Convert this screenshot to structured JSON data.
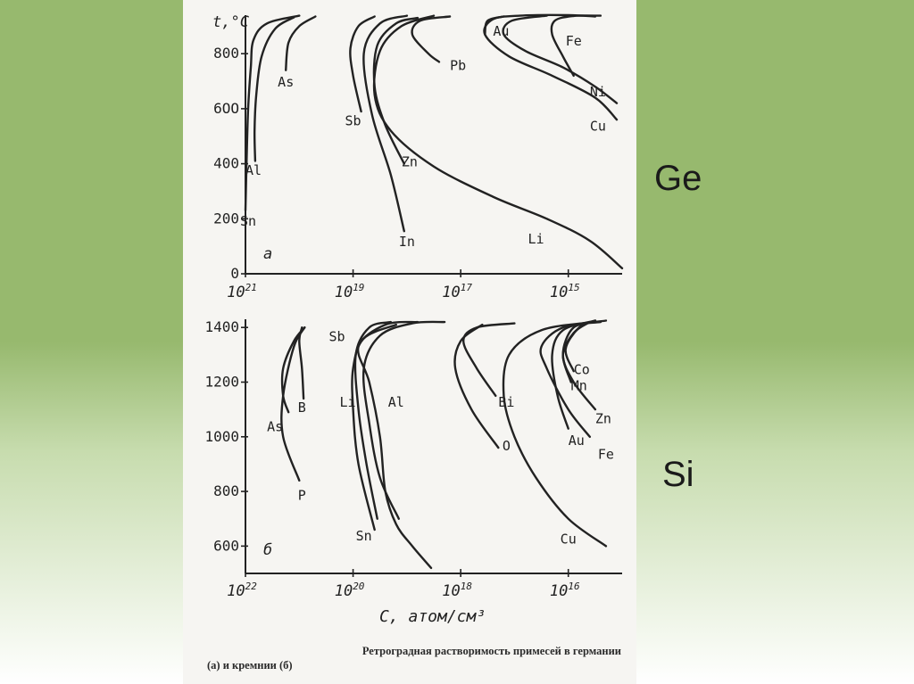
{
  "labels": {
    "ge": "Ge",
    "si": "Si"
  },
  "caption": {
    "line1": "Ретроградная растворимость примесей в германии",
    "line2": "(а) и кремнии (б)"
  },
  "colors": {
    "background_top": "#97b96e",
    "paper": "#f6f5f2",
    "ink": "#222222"
  },
  "chart_data": [
    {
      "type": "line",
      "panel_label": "а",
      "ylabel": "t,°C",
      "xlabel": "",
      "x_scale": "log, reversed (concentration, atom/cm³)",
      "xlim_exp": [
        21,
        14
      ],
      "ylim": [
        0,
        940
      ],
      "x_ticks": [
        "10^21",
        "10^19",
        "10^17",
        "10^15"
      ],
      "x_tick_exponents": [
        21,
        19,
        17,
        15
      ],
      "y_ticks": [
        0,
        200,
        400,
        600,
        800
      ],
      "y_tick_labels": [
        "0",
        "200",
        "400",
        "6OO",
        "800"
      ],
      "series": [
        {
          "name": "Sn",
          "label_at": {
            "exp": 20.95,
            "t": 175
          },
          "points": [
            [
              21.0,
              230
            ],
            [
              20.98,
              400
            ],
            [
              20.95,
              600
            ],
            [
              20.9,
              750
            ],
            [
              20.85,
              850
            ],
            [
              20.6,
              910
            ],
            [
              20.0,
              938
            ]
          ]
        },
        {
          "name": "Al",
          "label_at": {
            "exp": 20.85,
            "t": 360
          },
          "points": [
            [
              20.82,
              410
            ],
            [
              20.83,
              520
            ],
            [
              20.8,
              650
            ],
            [
              20.7,
              790
            ],
            [
              20.45,
              890
            ],
            [
              20.1,
              932
            ]
          ]
        },
        {
          "name": "As",
          "label_at": {
            "exp": 20.25,
            "t": 680
          },
          "points": [
            [
              20.25,
              740
            ],
            [
              20.2,
              840
            ],
            [
              20.0,
              900
            ],
            [
              19.7,
              935
            ]
          ]
        },
        {
          "name": "Sb",
          "label_at": {
            "exp": 19.0,
            "t": 540
          },
          "points": [
            [
              18.85,
              590
            ],
            [
              19.0,
              720
            ],
            [
              19.05,
              820
            ],
            [
              18.9,
              900
            ],
            [
              18.6,
              935
            ]
          ]
        },
        {
          "name": "In",
          "label_at": {
            "exp": 18.0,
            "t": 100
          },
          "points": [
            [
              18.05,
              155
            ],
            [
              18.3,
              360
            ],
            [
              18.65,
              580
            ],
            [
              18.8,
              800
            ],
            [
              18.5,
              910
            ],
            [
              18.0,
              938
            ]
          ]
        },
        {
          "name": "Zn",
          "label_at": {
            "exp": 17.95,
            "t": 390
          },
          "points": [
            [
              18.05,
              400
            ],
            [
              18.4,
              540
            ],
            [
              18.6,
              680
            ],
            [
              18.55,
              830
            ],
            [
              18.2,
              910
            ],
            [
              17.8,
              930
            ]
          ]
        },
        {
          "name": "Li",
          "label_at": {
            "exp": 15.6,
            "t": 110
          },
          "points": [
            [
              14.0,
              20
            ],
            [
              14.6,
              120
            ],
            [
              15.4,
              200
            ],
            [
              16.4,
              280
            ],
            [
              17.5,
              390
            ],
            [
              18.3,
              520
            ],
            [
              18.6,
              650
            ],
            [
              18.5,
              810
            ],
            [
              18.1,
              900
            ],
            [
              17.5,
              938
            ]
          ]
        },
        {
          "name": "Pb",
          "label_at": {
            "exp": 17.05,
            "t": 740
          },
          "points": [
            [
              17.4,
              770
            ],
            [
              17.6,
              800
            ],
            [
              17.9,
              870
            ],
            [
              17.75,
              920
            ],
            [
              17.2,
              935
            ]
          ]
        },
        {
          "name": "Au",
          "label_at": {
            "exp": 16.25,
            "t": 865
          },
          "points": [
            [
              16.55,
              870
            ],
            [
              16.5,
              920
            ],
            [
              16.2,
              935
            ]
          ]
        },
        {
          "name": "Cu",
          "label_at": {
            "exp": 14.45,
            "t": 520
          },
          "points": [
            [
              14.1,
              560
            ],
            [
              14.5,
              640
            ],
            [
              15.3,
              720
            ],
            [
              16.1,
              790
            ],
            [
              16.55,
              870
            ],
            [
              16.4,
              925
            ],
            [
              15.9,
              938
            ],
            [
              15.0,
              940
            ],
            [
              14.5,
              935
            ]
          ]
        },
        {
          "name": "Ni",
          "label_at": {
            "exp": 14.45,
            "t": 645
          },
          "points": [
            [
              14.1,
              620
            ],
            [
              14.5,
              680
            ],
            [
              15.1,
              750
            ],
            [
              15.8,
              810
            ],
            [
              16.2,
              870
            ],
            [
              16.05,
              920
            ],
            [
              15.4,
              938
            ]
          ]
        },
        {
          "name": "Fe",
          "label_at": {
            "exp": 14.9,
            "t": 830
          },
          "points": [
            [
              14.9,
              720
            ],
            [
              15.1,
              790
            ],
            [
              15.3,
              870
            ],
            [
              15.25,
              920
            ],
            [
              14.9,
              937
            ],
            [
              14.4,
              938
            ]
          ]
        }
      ]
    },
    {
      "type": "line",
      "panel_label": "б",
      "xlabel": "C, атом/см³",
      "ylabel": "",
      "x_scale": "log, reversed (concentration, atom/cm³)",
      "xlim_exp": [
        22,
        15
      ],
      "ylim": [
        500,
        1430
      ],
      "x_ticks": [
        "10^22",
        "10^20",
        "10^18",
        "10^16"
      ],
      "x_tick_exponents": [
        22,
        20,
        18,
        16
      ],
      "y_ticks": [
        600,
        800,
        1000,
        1200,
        1400
      ],
      "y_tick_labels": [
        "600",
        "800",
        "1000",
        "1200",
        "1400"
      ],
      "series": [
        {
          "name": "As",
          "label_at": {
            "exp": 21.45,
            "t": 1020
          },
          "points": [
            [
              21.2,
              1090
            ],
            [
              21.3,
              1150
            ],
            [
              21.3,
              1250
            ],
            [
              21.1,
              1350
            ],
            [
              20.9,
              1400
            ]
          ]
        },
        {
          "name": "P",
          "label_at": {
            "exp": 20.95,
            "t": 770
          },
          "points": [
            [
              21.0,
              840
            ],
            [
              21.3,
              1000
            ],
            [
              21.3,
              1150
            ],
            [
              21.1,
              1330
            ],
            [
              20.9,
              1400
            ]
          ]
        },
        {
          "name": "B",
          "label_at": {
            "exp": 20.95,
            "t": 1090
          },
          "points": [
            [
              20.92,
              1140
            ],
            [
              20.95,
              1250
            ],
            [
              21.0,
              1350
            ],
            [
              20.95,
              1400
            ]
          ]
        },
        {
          "name": "Sb",
          "label_at": {
            "exp": 20.3,
            "t": 1350
          },
          "points": [
            [
              19.6,
              660
            ],
            [
              19.9,
              900
            ],
            [
              20.0,
              1100
            ],
            [
              20.0,
              1250
            ],
            [
              19.8,
              1360
            ],
            [
              19.2,
              1410
            ]
          ]
        },
        {
          "name": "Sn",
          "label_at": {
            "exp": 19.8,
            "t": 620
          },
          "points": [
            [
              19.55,
              700
            ],
            [
              19.75,
              900
            ],
            [
              19.9,
              1100
            ],
            [
              19.95,
              1300
            ],
            [
              19.7,
              1400
            ],
            [
              19.3,
              1420
            ]
          ]
        },
        {
          "name": "Li",
          "label_at": {
            "exp": 20.1,
            "t": 1110
          },
          "points": [
            [
              18.55,
              520
            ],
            [
              18.9,
              600
            ],
            [
              19.2,
              680
            ],
            [
              19.4,
              800
            ],
            [
              19.5,
              1000
            ],
            [
              19.7,
              1200
            ],
            [
              19.9,
              1330
            ],
            [
              19.4,
              1410
            ],
            [
              18.8,
              1420
            ]
          ]
        },
        {
          "name": "Al",
          "label_at": {
            "exp": 19.2,
            "t": 1110
          },
          "points": [
            [
              19.15,
              700
            ],
            [
              19.5,
              850
            ],
            [
              19.7,
              1050
            ],
            [
              19.8,
              1250
            ],
            [
              19.5,
              1370
            ],
            [
              18.9,
              1415
            ],
            [
              18.3,
              1420
            ]
          ]
        },
        {
          "name": "O",
          "label_at": {
            "exp": 17.15,
            "t": 950
          },
          "points": [
            [
              17.3,
              960
            ],
            [
              17.8,
              1100
            ],
            [
              18.1,
              1250
            ],
            [
              18.0,
              1350
            ],
            [
              17.6,
              1410
            ]
          ]
        },
        {
          "name": "Bi",
          "label_at": {
            "exp": 17.15,
            "t": 1110
          },
          "points": [
            [
              17.35,
              1150
            ],
            [
              17.7,
              1250
            ],
            [
              17.95,
              1350
            ],
            [
              17.7,
              1400
            ],
            [
              17.0,
              1415
            ]
          ]
        },
        {
          "name": "Cu",
          "label_at": {
            "exp": 16.0,
            "t": 610
          },
          "points": [
            [
              15.3,
              600
            ],
            [
              16.0,
              700
            ],
            [
              16.6,
              850
            ],
            [
              17.0,
              1000
            ],
            [
              17.2,
              1150
            ],
            [
              17.1,
              1300
            ],
            [
              16.5,
              1390
            ],
            [
              15.5,
              1420
            ]
          ]
        },
        {
          "name": "Fe",
          "label_at": {
            "exp": 15.3,
            "t": 920
          },
          "points": [
            [
              15.6,
              1000
            ],
            [
              16.0,
              1100
            ],
            [
              16.4,
              1250
            ],
            [
              16.5,
              1330
            ],
            [
              16.1,
              1400
            ],
            [
              15.3,
              1425
            ]
          ]
        },
        {
          "name": "Au",
          "label_at": {
            "exp": 15.85,
            "t": 970
          },
          "points": [
            [
              16.0,
              1030
            ],
            [
              16.2,
              1150
            ],
            [
              16.3,
              1300
            ],
            [
              16.1,
              1390
            ],
            [
              15.5,
              1425
            ]
          ]
        },
        {
          "name": "Zn",
          "label_at": {
            "exp": 15.35,
            "t": 1050
          },
          "points": [
            [
              15.5,
              1100
            ],
            [
              15.9,
              1200
            ],
            [
              16.1,
              1300
            ],
            [
              15.9,
              1400
            ],
            [
              15.4,
              1420
            ]
          ]
        },
        {
          "name": "Mn",
          "label_at": {
            "exp": 15.8,
            "t": 1170
          },
          "points": [
            [
              15.95,
              1200
            ],
            [
              16.1,
              1300
            ],
            [
              15.9,
              1380
            ],
            [
              15.6,
              1420
            ]
          ]
        },
        {
          "name": "Co",
          "label_at": {
            "exp": 15.75,
            "t": 1230
          },
          "points": [
            [
              15.9,
              1240
            ],
            [
              16.05,
              1320
            ],
            [
              15.8,
              1400
            ],
            [
              15.5,
              1425
            ]
          ]
        }
      ]
    }
  ]
}
